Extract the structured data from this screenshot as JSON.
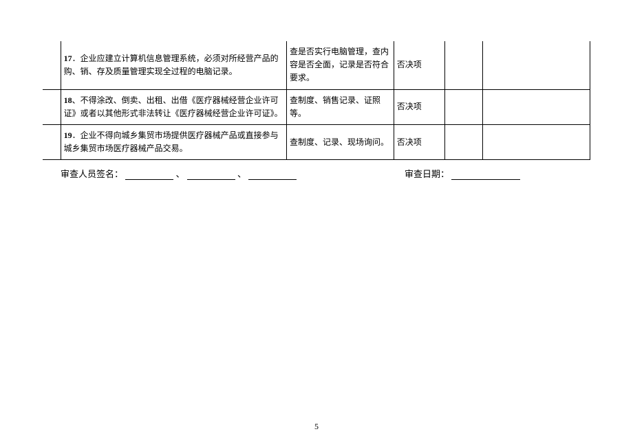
{
  "table": {
    "rows": [
      {
        "num": "17",
        "desc": "．企业应建立计算机信息管理系统，必须对所经营产品的购、销、存及质量管理实现全过程的电脑记录。",
        "check": "查是否实行电脑管理，查内容是否全面，记录是否符合要求。",
        "type": "否决项"
      },
      {
        "num": "18",
        "desc": "、不得涂改、倒卖、出租、出借《医疗器械经营企业许可证》或者以其他形式非法转让《医疗器械经营企业许可证》。",
        "check": "查制度、销售记录、证照等。",
        "type": "否决项"
      },
      {
        "num": "19",
        "desc": "．企业不得向城乡集贸市场提供医疗器械产品或直接参与城乡集贸市场医疗器械产品交易。",
        "check": "查制度、记录、现场询问。",
        "type": "否决项"
      }
    ]
  },
  "signature": {
    "label_left": "审查人员签名：",
    "sep": "、",
    "label_right": "审查日期："
  },
  "page_number": "5"
}
